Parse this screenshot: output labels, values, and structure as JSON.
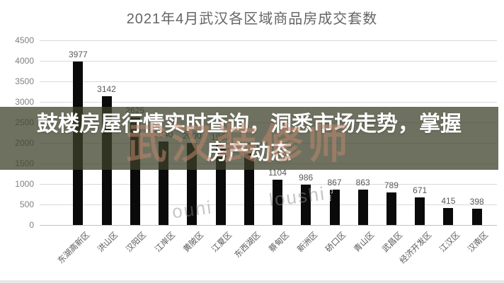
{
  "title": "2021年4月武汉各区域商品房成交套数",
  "banner": {
    "text": "鼓楼房屋行情实时查询，洞悉市场走势，掌握房产动态",
    "lines": [
      "鼓楼房屋行情实时查询，洞悉市场走势，掌握",
      "房产动态"
    ]
  },
  "watermarks": {
    "cn": "武汉装修师",
    "latin1": "ouni",
    "latin2": "loushi",
    "mini": "市m"
  },
  "colors": {
    "bar": "#0a0a0a",
    "gridline": "#d9d9d9",
    "axis_text": "#7f7f7f",
    "value_label": "#595959",
    "title_text": "#646464",
    "banner_bg_rgba": "rgba(62,66,41,0.75)",
    "banner_text": "#ffffff"
  },
  "chart_data": {
    "type": "bar",
    "title": "2021年4月武汉各区域商品房成交套数",
    "categories": [
      "东湖高新区",
      "洪山区",
      "汉阳区",
      "江岸区",
      "黄陂区",
      "江夏区",
      "东西湖区",
      "蔡甸区",
      "新洲区",
      "硚口区",
      "青山区",
      "武昌区",
      "经济开发区",
      "江汉区",
      "汉南区"
    ],
    "values": [
      3977,
      3142,
      2625,
      2040,
      2000,
      1965,
      1750,
      1104,
      986,
      867,
      863,
      789,
      671,
      415,
      398
    ],
    "value_labels_hidden_by_banner": [
      "江岸区",
      "黄陂区",
      "江夏区",
      "东西湖区"
    ],
    "xlabel": "",
    "ylabel": "",
    "ylim": [
      0,
      4500
    ],
    "ytick_step": 500,
    "yticks": [
      0,
      500,
      1000,
      1500,
      2000,
      2500,
      3000,
      3500,
      4000,
      4500
    ],
    "grid": "horizontal",
    "legend": "none"
  }
}
